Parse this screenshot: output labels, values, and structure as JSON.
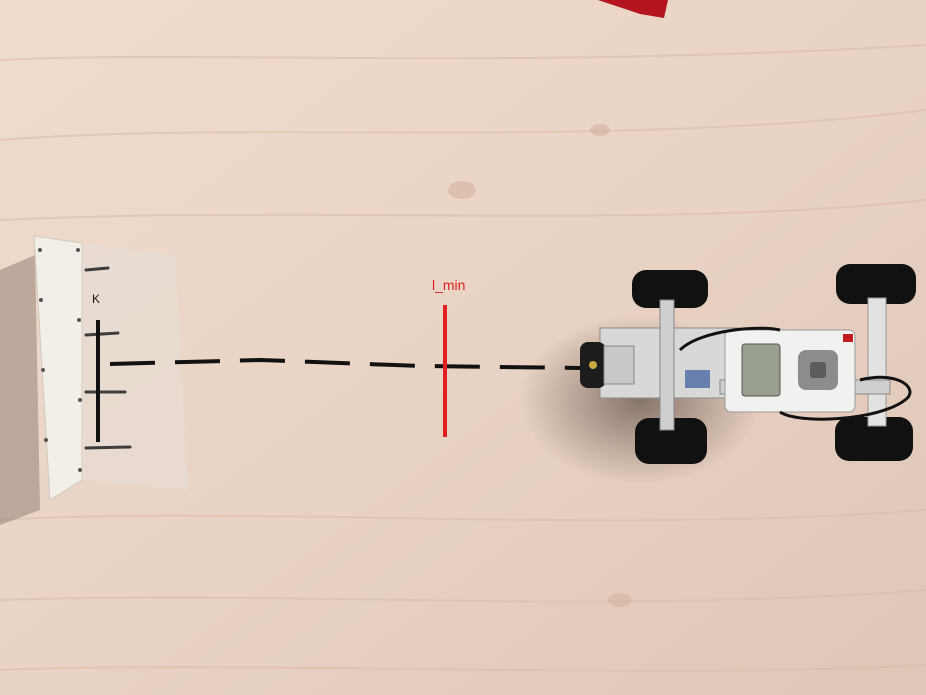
{
  "annotations": {
    "wall_marker": {
      "text": "K",
      "color": "#111111"
    },
    "min_distance_marker": {
      "text": "l_min",
      "color": "#e02020"
    },
    "distance_line": {
      "color": "#111111",
      "style": "dashed"
    }
  },
  "scene": {
    "floor_color": "#e8d3c6",
    "objects": [
      "lego-wall-obstacle",
      "lego-ev3-robot-car"
    ]
  }
}
